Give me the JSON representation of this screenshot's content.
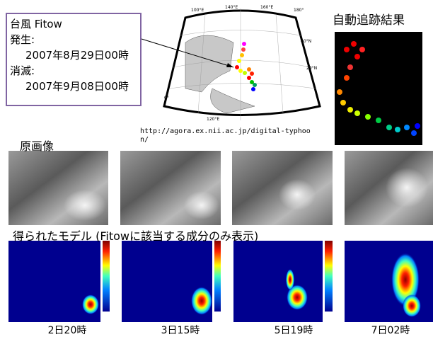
{
  "info": {
    "title": "台風 Fitow",
    "genesis_label": "発生:",
    "genesis": "2007年8月29日00時",
    "dissipation_label": "消滅:",
    "dissipation": "2007年9月08日00時"
  },
  "map": {
    "labels": [
      "100°E",
      "120°E",
      "140°E",
      "160°E",
      "180°",
      "40°N",
      "20°N",
      "0°"
    ],
    "source": "http://agora.ex.nii.ac.jp/digital-typhoon/"
  },
  "tracking": {
    "title": "自動追跡結果"
  },
  "original": {
    "title": "原画像"
  },
  "model": {
    "title": "得られたモデル (Fitowに該当する成分のみ表示)",
    "captions": [
      "2日20時",
      "3日15時",
      "5日19時",
      "7日02時"
    ]
  }
}
